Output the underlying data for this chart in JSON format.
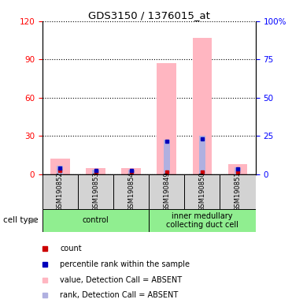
{
  "title": "GDS3150 / 1376015_at",
  "samples": [
    "GSM190852",
    "GSM190853",
    "GSM190854",
    "GSM190849",
    "GSM190850",
    "GSM190851"
  ],
  "groups": [
    {
      "name": "control",
      "indices": [
        0,
        1,
        2
      ],
      "color": "#90ee90"
    },
    {
      "name": "inner medullary\ncollecting duct cell",
      "indices": [
        3,
        4,
        5
      ],
      "color": "#90ee90"
    }
  ],
  "value_absent": [
    12,
    5,
    5,
    87,
    107,
    8
  ],
  "rank_absent": [
    6.5,
    3.5,
    3.5,
    27,
    30,
    5.5
  ],
  "count": [
    3,
    2,
    2,
    2,
    2,
    2
  ],
  "percentile": [
    5,
    3.0,
    3.0,
    26,
    28,
    4.5
  ],
  "left_ylim": [
    0,
    120
  ],
  "right_ylim": [
    0,
    100
  ],
  "left_yticks": [
    0,
    30,
    60,
    90,
    120
  ],
  "right_yticks": [
    0,
    25,
    50,
    75,
    100
  ],
  "right_yticklabels": [
    "0",
    "25",
    "50",
    "75",
    "100%"
  ],
  "bar_color_value": "#ffb6c1",
  "bar_color_rank": "#b0b0e0",
  "marker_color_count": "#cc0000",
  "marker_color_percentile": "#0000bb",
  "bg_color": "#d3d3d3",
  "green_color": "#90ee90",
  "cell_type_label": "cell type",
  "legend_items": [
    {
      "color": "#cc0000",
      "label": "count"
    },
    {
      "color": "#0000bb",
      "label": "percentile rank within the sample"
    },
    {
      "color": "#ffb6c1",
      "label": "value, Detection Call = ABSENT"
    },
    {
      "color": "#b0b0e0",
      "label": "rank, Detection Call = ABSENT"
    }
  ]
}
